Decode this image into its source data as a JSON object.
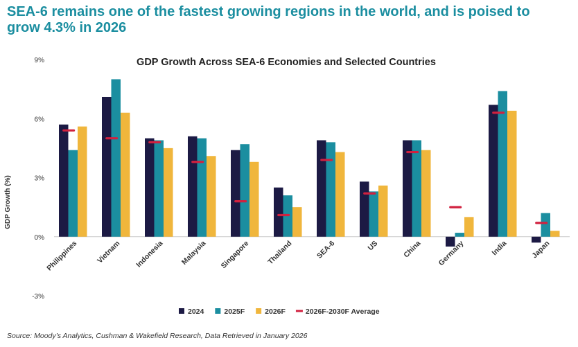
{
  "headline": "SEA-6 remains one of the fastest growing regions in the world, and is poised to grow 4.3% in 2026",
  "source": "Source: Moody’s Analytics, Cushman & Wakefield Research, Data Retrieved in January 2026",
  "colors": {
    "s2024": "#1c1a44",
    "s2025": "#1b8ea0",
    "s2026": "#f0b63c",
    "avg": "#d1213f",
    "headline": "#1b8ea0"
  },
  "chart_data": {
    "type": "bar",
    "title": "GDP Growth Across SEA-6 Economies and Selected Countries",
    "ylabel": "GDP Growth (%)",
    "xlabel": "",
    "ylim": [
      -3,
      9
    ],
    "yticks": [
      -3,
      0,
      3,
      6,
      9
    ],
    "ytick_labels": [
      "-3%",
      "0%",
      "3%",
      "6%",
      "9%"
    ],
    "legend_position": "bottom",
    "categories": [
      "Philippines",
      "Vietnam",
      "Indonesia",
      "Malaysia",
      "Singapore",
      "Thailand",
      "SEA-6",
      "US",
      "China",
      "Germany",
      "India",
      "Japan"
    ],
    "series": [
      {
        "name": "2024",
        "color": "#1c1a44",
        "values": [
          5.7,
          7.1,
          5.0,
          5.1,
          4.4,
          2.5,
          4.9,
          2.8,
          4.9,
          -0.5,
          6.7,
          -0.3
        ]
      },
      {
        "name": "2025F",
        "color": "#1b8ea0",
        "values": [
          4.4,
          8.0,
          4.9,
          5.0,
          4.7,
          2.1,
          4.8,
          2.3,
          4.9,
          0.2,
          7.4,
          1.2
        ]
      },
      {
        "name": "2026F",
        "color": "#f0b63c",
        "values": [
          5.6,
          6.3,
          4.5,
          4.1,
          3.8,
          1.5,
          4.3,
          2.6,
          4.4,
          1.0,
          6.4,
          0.3
        ]
      }
    ],
    "markers": {
      "name": "2026F-2030F Average",
      "color": "#d1213f",
      "values": [
        5.4,
        5.0,
        4.8,
        3.8,
        1.8,
        1.1,
        3.9,
        2.2,
        4.3,
        1.5,
        6.3,
        0.7
      ]
    }
  }
}
